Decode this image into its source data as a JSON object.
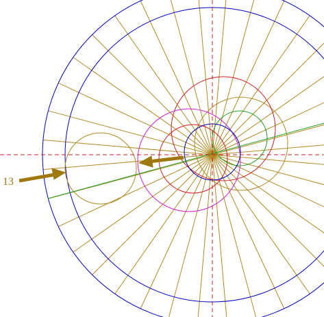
{
  "labels": {
    "arrow_label": "13"
  }
}
